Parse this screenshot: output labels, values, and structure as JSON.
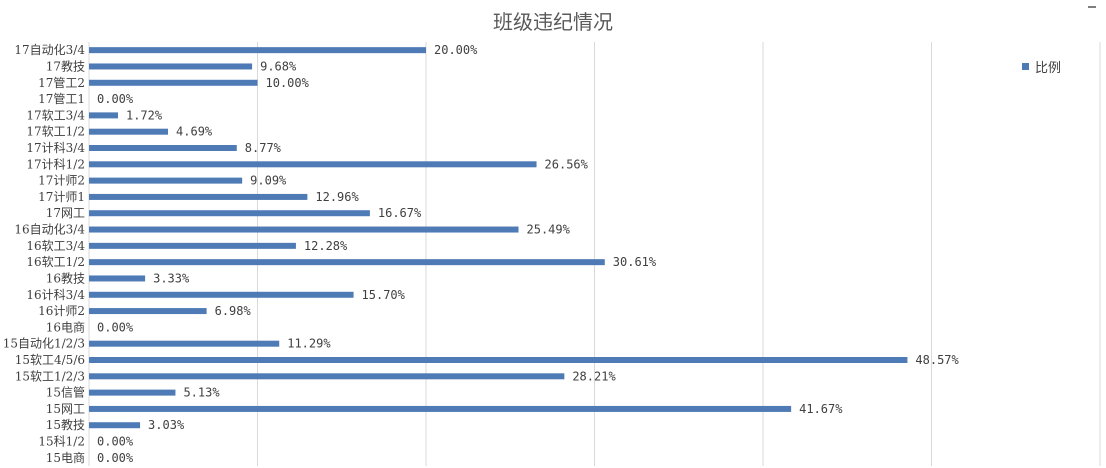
{
  "chart_data": {
    "type": "bar",
    "orientation": "horizontal",
    "title": "班级违纪情况",
    "xlabel": "",
    "ylabel": "",
    "xlim": [
      0,
      0.6
    ],
    "grid": true,
    "legend_position": "top-right",
    "color": "#4e7ab5",
    "categories": [
      "17自动化3/4",
      "17教技",
      "17管工2",
      "17管工1",
      "17软工3/4",
      "17软工1/2",
      "17计科3/4",
      "17计科1/2",
      "17计师2",
      "17计师1",
      "17网工",
      "16自动化3/4",
      "16软工3/4",
      "16软工1/2",
      "16教技",
      "16计科3/4",
      "16计师2",
      "16电商",
      "15自动化1/2/3",
      "15软工4/5/6",
      "15软工1/2/3",
      "15信管",
      "15网工",
      "15教技",
      "15科1/2",
      "15电商"
    ],
    "series": [
      {
        "name": "比例",
        "values": [
          0.2,
          0.0968,
          0.1,
          0.0,
          0.0172,
          0.0469,
          0.0877,
          0.2656,
          0.0909,
          0.1296,
          0.1667,
          0.2549,
          0.1228,
          0.3061,
          0.0333,
          0.157,
          0.0698,
          0.0,
          0.1129,
          0.4857,
          0.2821,
          0.0513,
          0.4167,
          0.0303,
          0.0,
          0.0
        ],
        "labels": [
          "20.00%",
          "9.68%",
          "10.00%",
          "0.00%",
          "1.72%",
          "4.69%",
          "8.77%",
          "26.56%",
          "9.09%",
          "12.96%",
          "16.67%",
          "25.49%",
          "12.28%",
          "30.61%",
          "3.33%",
          "15.70%",
          "6.98%",
          "0.00%",
          "11.29%",
          "48.57%",
          "28.21%",
          "5.13%",
          "41.67%",
          "3.03%",
          "0.00%",
          "0.00%"
        ]
      }
    ]
  }
}
